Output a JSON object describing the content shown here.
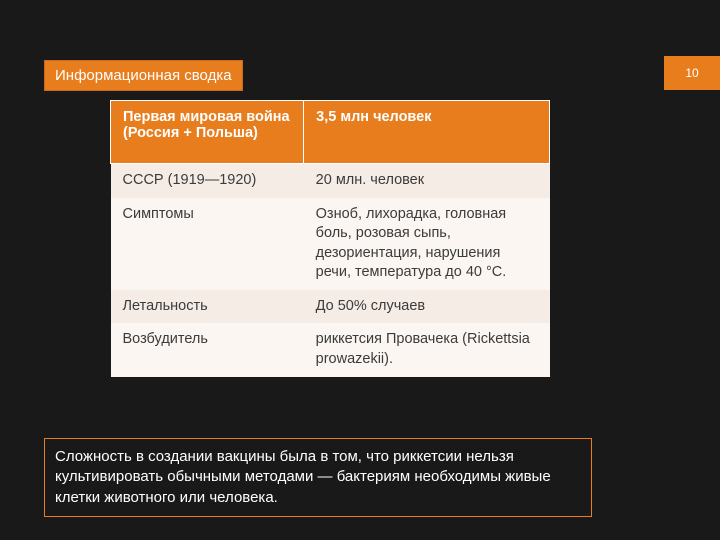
{
  "pageNumber": "10",
  "titleBox": {
    "text": "Информационная сводка",
    "bg": "#e87d1e",
    "fg": "#ffffff"
  },
  "table": {
    "header_bg": "#e87d1e",
    "header_fg": "#ffffff",
    "row_alt_bg": "#f5ece6",
    "row_plain_bg": "#fbf6f2",
    "text_color": "#3b3b3b",
    "font_size_pt": 11,
    "columns": [
      {
        "label": "Первая мировая война (Россия + Польша)",
        "width_pct": 44
      },
      {
        "label": "3,5 млн человек",
        "width_pct": 56
      }
    ],
    "rows": [
      {
        "left": "СССР (1919—1920)",
        "right": "20 млн. человек",
        "alt": true
      },
      {
        "left": "Симптомы",
        "right": "Озноб, лихорадка, головная боль, розовая сыпь, дезориентация, нарушения речи, температура до 40 °С.",
        "alt": false
      },
      {
        "left": "Летальность",
        "right": "До 50% случаев",
        "alt": true
      },
      {
        "left": "Возбудитель",
        "right": "риккетсия Провачека  (Rickettsia prowazekii).",
        "alt": false
      }
    ]
  },
  "footerBox": {
    "text": "Сложность в создании вакцины была в том, что риккетсии нельзя культивировать обычными методами — бактериям необходимы живые клетки животного или человека.",
    "border_color": "#e87d1e",
    "fg": "#ffffff"
  },
  "background_color": "#191919"
}
